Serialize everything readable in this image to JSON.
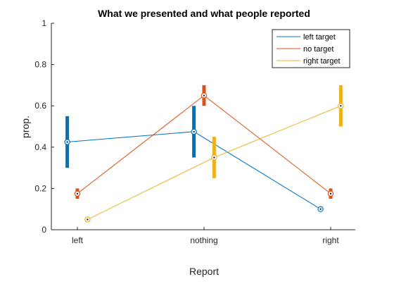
{
  "chart_data": {
    "type": "line",
    "title": "What we presented and what people reported",
    "xlabel": "Report",
    "ylabel": "prop.",
    "categories": [
      "left",
      "nothing",
      "right"
    ],
    "ylim": [
      0,
      1
    ],
    "yticks": [
      "0",
      "0.2",
      "0.4",
      "0.6",
      "0.8",
      "1"
    ],
    "grid": false,
    "legend_position": "top-right",
    "series": [
      {
        "name": "left target",
        "color": "#0072BD",
        "x": [
          -0.08,
          0.92,
          1.92
        ],
        "values": [
          0.425,
          0.475,
          0.1
        ],
        "err_low": [
          0.3,
          0.35,
          null
        ],
        "err_high": [
          0.55,
          0.6,
          null
        ]
      },
      {
        "name": "no target",
        "color": "#D95319",
        "x": [
          0.0,
          1.0,
          2.0
        ],
        "values": [
          0.175,
          0.65,
          0.175
        ],
        "err_low": [
          0.15,
          0.6,
          0.15
        ],
        "err_high": [
          0.2,
          0.7,
          0.2
        ]
      },
      {
        "name": "right target",
        "color": "#EDB120",
        "x": [
          0.08,
          1.08,
          2.08
        ],
        "values": [
          0.05,
          0.35,
          0.6
        ],
        "err_low": [
          null,
          0.25,
          0.5
        ],
        "err_high": [
          null,
          0.45,
          0.7
        ]
      }
    ]
  }
}
